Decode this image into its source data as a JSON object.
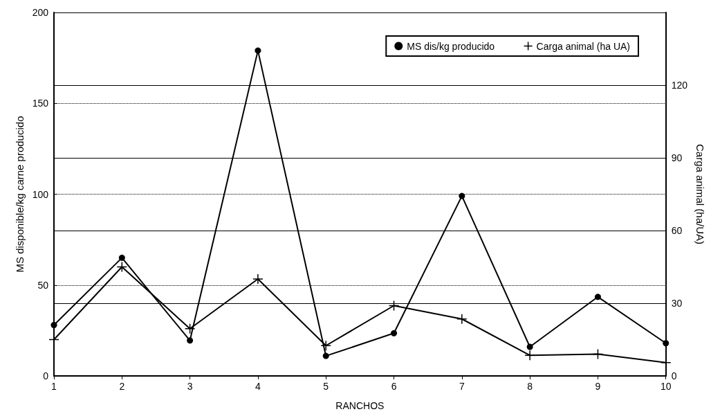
{
  "chart_data": {
    "type": "line",
    "xlabel": "RANCHOS",
    "ylabel": "MS disponible/kg carne producido",
    "y2label": "Carga animal (ha/UA)",
    "x": [
      1,
      2,
      3,
      4,
      5,
      6,
      7,
      8,
      9,
      10
    ],
    "xlim": [
      1,
      10
    ],
    "xticks": [
      1,
      2,
      3,
      4,
      5,
      6,
      7,
      8,
      9,
      10
    ],
    "ylim": [
      0,
      200
    ],
    "yticks": [
      0,
      50,
      100,
      150,
      200
    ],
    "y2lim": [
      0,
      150
    ],
    "y2ticks": [
      0,
      30,
      60,
      90,
      120,
      {
        "value": 150,
        "label": null
      }
    ],
    "grid": "y",
    "legend": "top right",
    "line_style": "solid",
    "series": [
      {
        "name": "MS dis/kg producido",
        "color": "#000000",
        "marker": "circle",
        "values": [
          28,
          65,
          19.5,
          179,
          11,
          23.5,
          99,
          16,
          43.5,
          18
        ]
      },
      {
        "name": "Carga animal (ha UA)",
        "color": "#000000",
        "marker": "cross",
        "axis": "y2",
        "values": [
          15,
          45,
          19.5,
          40,
          12.5,
          29,
          23.5,
          8.5,
          9,
          5.5
        ]
      }
    ]
  }
}
